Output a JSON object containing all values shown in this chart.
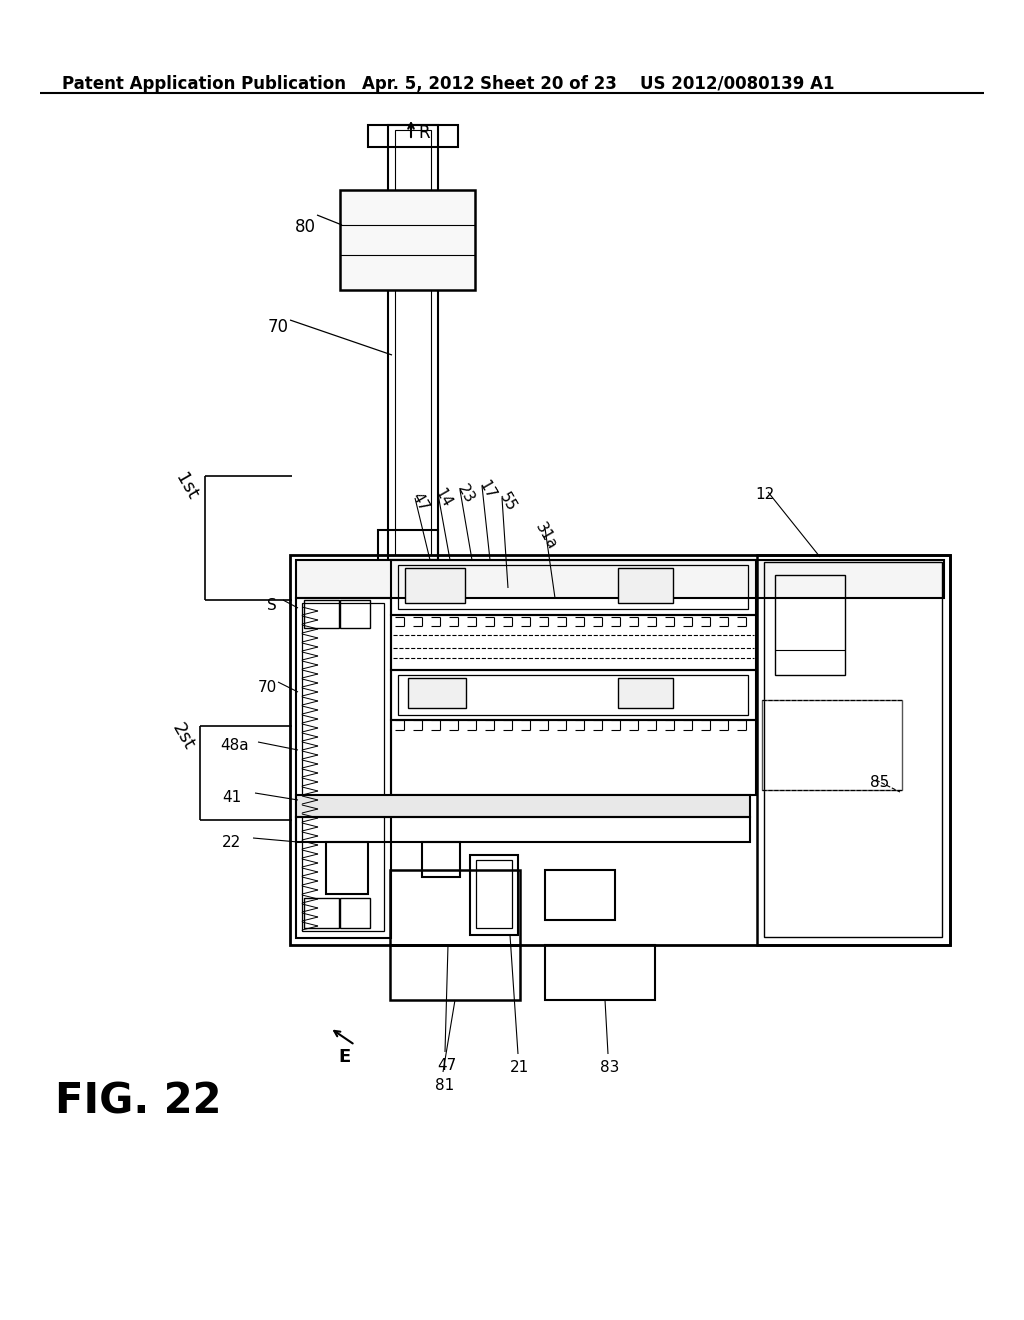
{
  "bg": "#ffffff",
  "header1": "Patent Application Publication",
  "header2": "Apr. 5, 2012",
  "header3": "Sheet 20 of 23",
  "header4": "US 2012/0080139 A1",
  "fig_label": "FIG. 22"
}
